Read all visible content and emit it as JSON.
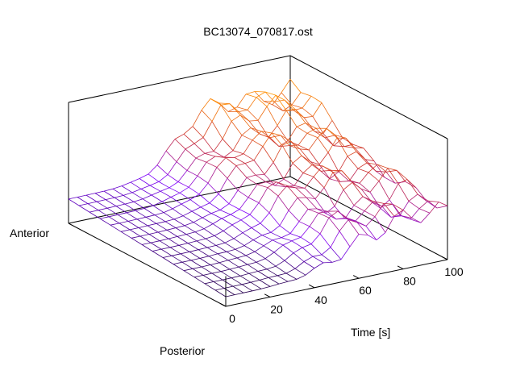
{
  "chart_data": {
    "type": "surface",
    "title": "BC13074_070817.ost",
    "axes": {
      "x": {
        "label": "Time [s]",
        "range": [
          0,
          100
        ],
        "ticks": [
          0,
          20,
          40,
          60,
          80,
          100
        ]
      },
      "y": {
        "label_start": "Posterior",
        "label_end": "Anterior"
      },
      "z": {
        "label": ""
      }
    },
    "grid_resolution": {
      "time_steps": 26,
      "position_steps": 16
    },
    "surface_description": "Mesh surface; values low and flat in the first ~40 s, rising into ridges after ~50 s, highest on the anterior side near 80-100 s",
    "colormap": [
      "#000000",
      "#7f00ff",
      "#cc3030",
      "#ff8c00",
      "#ffee00"
    ],
    "mesh_sample": {
      "time": [
        0,
        20,
        40,
        60,
        80,
        100
      ],
      "posterior": [
        0.05,
        0.06,
        0.1,
        0.3,
        0.35,
        0.4
      ],
      "middle": [
        0.15,
        0.2,
        0.3,
        0.7,
        0.85,
        0.9
      ],
      "anterior": [
        0.2,
        0.25,
        0.35,
        0.85,
        1.0,
        0.95
      ]
    }
  }
}
